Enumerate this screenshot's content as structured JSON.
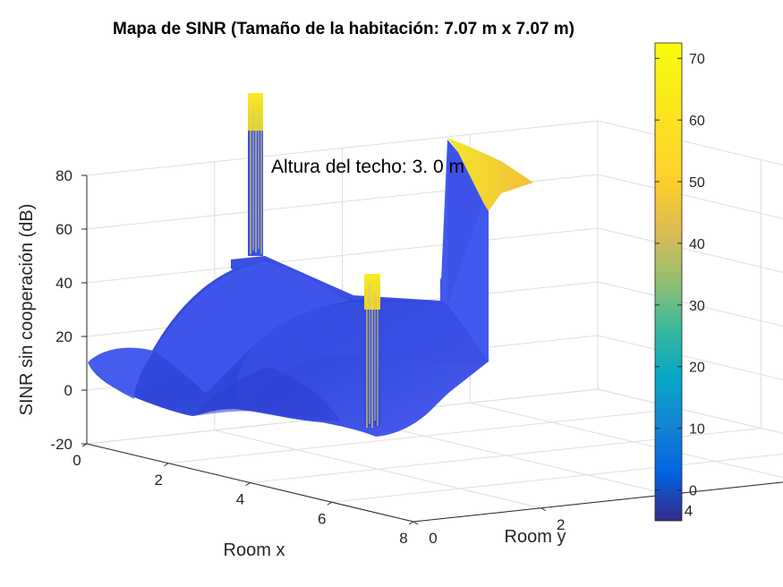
{
  "chart_data": {
    "type": "surface3d",
    "title": "Mapa de SINR (Tamaño de la habitación: 7.07 m x 7.07 m)",
    "xlabel": "Room x",
    "ylabel": "Room y",
    "zlabel": "SINR sin cooperación (dB)",
    "annotation": "Altura del techo: 3.  0 m",
    "xlim": [
      0,
      8
    ],
    "ylim": [
      0,
      8
    ],
    "zlim": [
      -20,
      80
    ],
    "xticks": [
      "0",
      "2",
      "4",
      "6",
      "8"
    ],
    "yticks": [
      "0",
      "2",
      "4",
      "6",
      "8"
    ],
    "zticks": [
      "-20",
      "0",
      "20",
      "40",
      "60",
      "80"
    ],
    "grid": true,
    "colorbar": {
      "range": [
        -5,
        72.5
      ],
      "ticks": [
        "0",
        "10",
        "20",
        "30",
        "40",
        "50",
        "60",
        "70"
      ],
      "colormap": "parula",
      "placement": "right"
    },
    "colors": {
      "surface_low": "#3d4fe0",
      "peak": "#f5e62a",
      "grid": "#dedede",
      "axis": "#262626"
    }
  }
}
